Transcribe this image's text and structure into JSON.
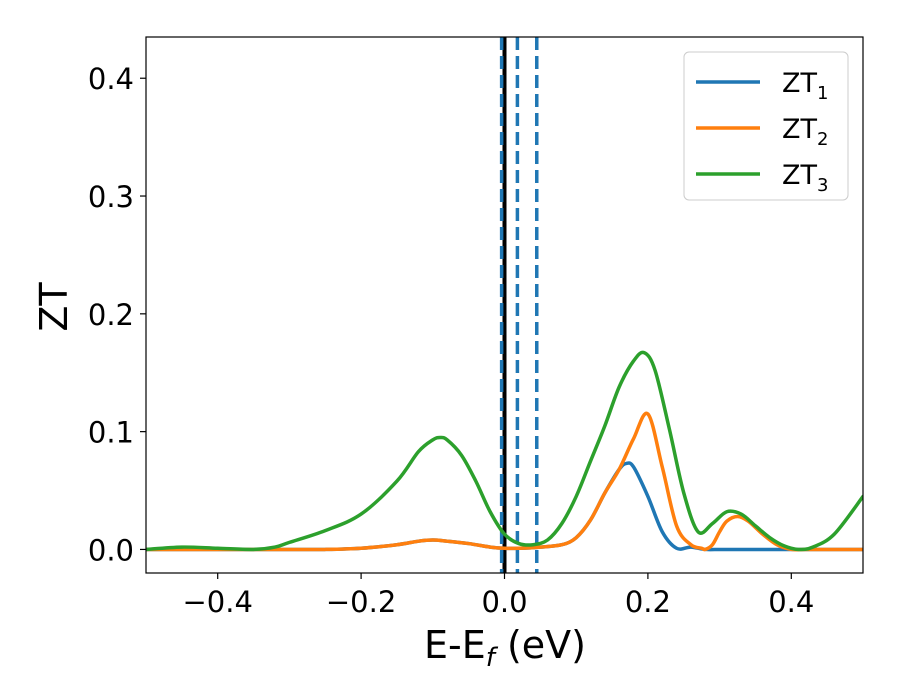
{
  "chart_data": {
    "type": "line",
    "xlabel": "E-E_f (eV)",
    "xlabel_main": "E-E",
    "xlabel_sub": "f",
    "xlabel_unit": " (eV)",
    "ylabel": "ZT",
    "xlim": [
      -0.5,
      0.5
    ],
    "ylim": [
      -0.02,
      0.435
    ],
    "x_ticks": [
      -0.4,
      -0.2,
      0.0,
      0.2,
      0.4
    ],
    "x_tick_labels": [
      "−0.4",
      "−0.2",
      "0.0",
      "0.2",
      "0.4"
    ],
    "y_ticks": [
      0.0,
      0.1,
      0.2,
      0.3,
      0.4
    ],
    "y_tick_labels": [
      "0.0",
      "0.1",
      "0.2",
      "0.3",
      "0.4"
    ],
    "grid": false,
    "legend_position": "top-right",
    "vertical_lines": [
      {
        "x": 0.0,
        "style": "solid",
        "color": "#000000"
      },
      {
        "x": -0.004,
        "style": "dashed",
        "color": "#1f77b4"
      },
      {
        "x": 0.018,
        "style": "dashed",
        "color": "#1f77b4"
      },
      {
        "x": 0.045,
        "style": "dashed",
        "color": "#1f77b4"
      }
    ],
    "series": [
      {
        "name": "ZT_1",
        "label_main": "ZT",
        "label_sub": "1",
        "color": "#1f77b4",
        "x": [
          -0.5,
          -0.45,
          -0.4,
          -0.35,
          -0.3,
          -0.25,
          -0.2,
          -0.15,
          -0.12,
          -0.1,
          -0.08,
          -0.05,
          -0.02,
          0.0,
          0.02,
          0.05,
          0.08,
          0.1,
          0.12,
          0.14,
          0.16,
          0.17,
          0.18,
          0.2,
          0.22,
          0.24,
          0.26,
          0.28,
          0.3,
          0.32,
          0.34,
          0.36,
          0.38,
          0.4,
          0.42,
          0.45,
          0.5
        ],
        "y": [
          0.0,
          0.0,
          0.0,
          0.0,
          0.0,
          0.0,
          0.001,
          0.004,
          0.007,
          0.008,
          0.007,
          0.005,
          0.002,
          0.001,
          0.001,
          0.002,
          0.004,
          0.01,
          0.025,
          0.048,
          0.068,
          0.073,
          0.07,
          0.045,
          0.015,
          0.001,
          0.002,
          0.0,
          0.0,
          0.0,
          0.0,
          0.0,
          0.0,
          0.0,
          0.0,
          0.0,
          0.0
        ]
      },
      {
        "name": "ZT_2",
        "label_main": "ZT",
        "label_sub": "2",
        "color": "#ff7f0e",
        "x": [
          -0.5,
          -0.45,
          -0.4,
          -0.35,
          -0.3,
          -0.25,
          -0.2,
          -0.15,
          -0.12,
          -0.1,
          -0.08,
          -0.05,
          -0.02,
          0.0,
          0.02,
          0.05,
          0.08,
          0.1,
          0.12,
          0.14,
          0.16,
          0.18,
          0.2,
          0.22,
          0.24,
          0.26,
          0.275,
          0.28,
          0.29,
          0.3,
          0.31,
          0.325,
          0.34,
          0.36,
          0.38,
          0.4,
          0.42,
          0.45,
          0.5
        ],
        "y": [
          0.0,
          0.0,
          0.0,
          0.0,
          0.0,
          0.0,
          0.001,
          0.004,
          0.007,
          0.008,
          0.007,
          0.005,
          0.002,
          0.001,
          0.001,
          0.002,
          0.004,
          0.01,
          0.025,
          0.048,
          0.068,
          0.094,
          0.115,
          0.07,
          0.02,
          0.004,
          0.001,
          0.0,
          0.004,
          0.015,
          0.024,
          0.028,
          0.024,
          0.013,
          0.004,
          0.0,
          0.0,
          0.0,
          0.0
        ]
      },
      {
        "name": "ZT_3",
        "label_main": "ZT",
        "label_sub": "3",
        "color": "#2ca02c",
        "x": [
          -0.5,
          -0.45,
          -0.4,
          -0.35,
          -0.32,
          -0.3,
          -0.25,
          -0.2,
          -0.15,
          -0.12,
          -0.1,
          -0.09,
          -0.08,
          -0.06,
          -0.04,
          -0.02,
          0.0,
          0.02,
          0.04,
          0.06,
          0.08,
          0.1,
          0.12,
          0.14,
          0.16,
          0.18,
          0.195,
          0.21,
          0.23,
          0.25,
          0.27,
          0.29,
          0.31,
          0.33,
          0.35,
          0.37,
          0.39,
          0.41,
          0.43,
          0.46,
          0.5
        ],
        "y": [
          0.0,
          0.002,
          0.001,
          0.0,
          0.002,
          0.006,
          0.016,
          0.03,
          0.058,
          0.083,
          0.093,
          0.095,
          0.093,
          0.08,
          0.058,
          0.032,
          0.013,
          0.005,
          0.004,
          0.008,
          0.022,
          0.045,
          0.075,
          0.105,
          0.138,
          0.16,
          0.167,
          0.152,
          0.102,
          0.048,
          0.015,
          0.022,
          0.032,
          0.03,
          0.02,
          0.01,
          0.003,
          0.0,
          0.002,
          0.013,
          0.045
        ]
      }
    ]
  }
}
